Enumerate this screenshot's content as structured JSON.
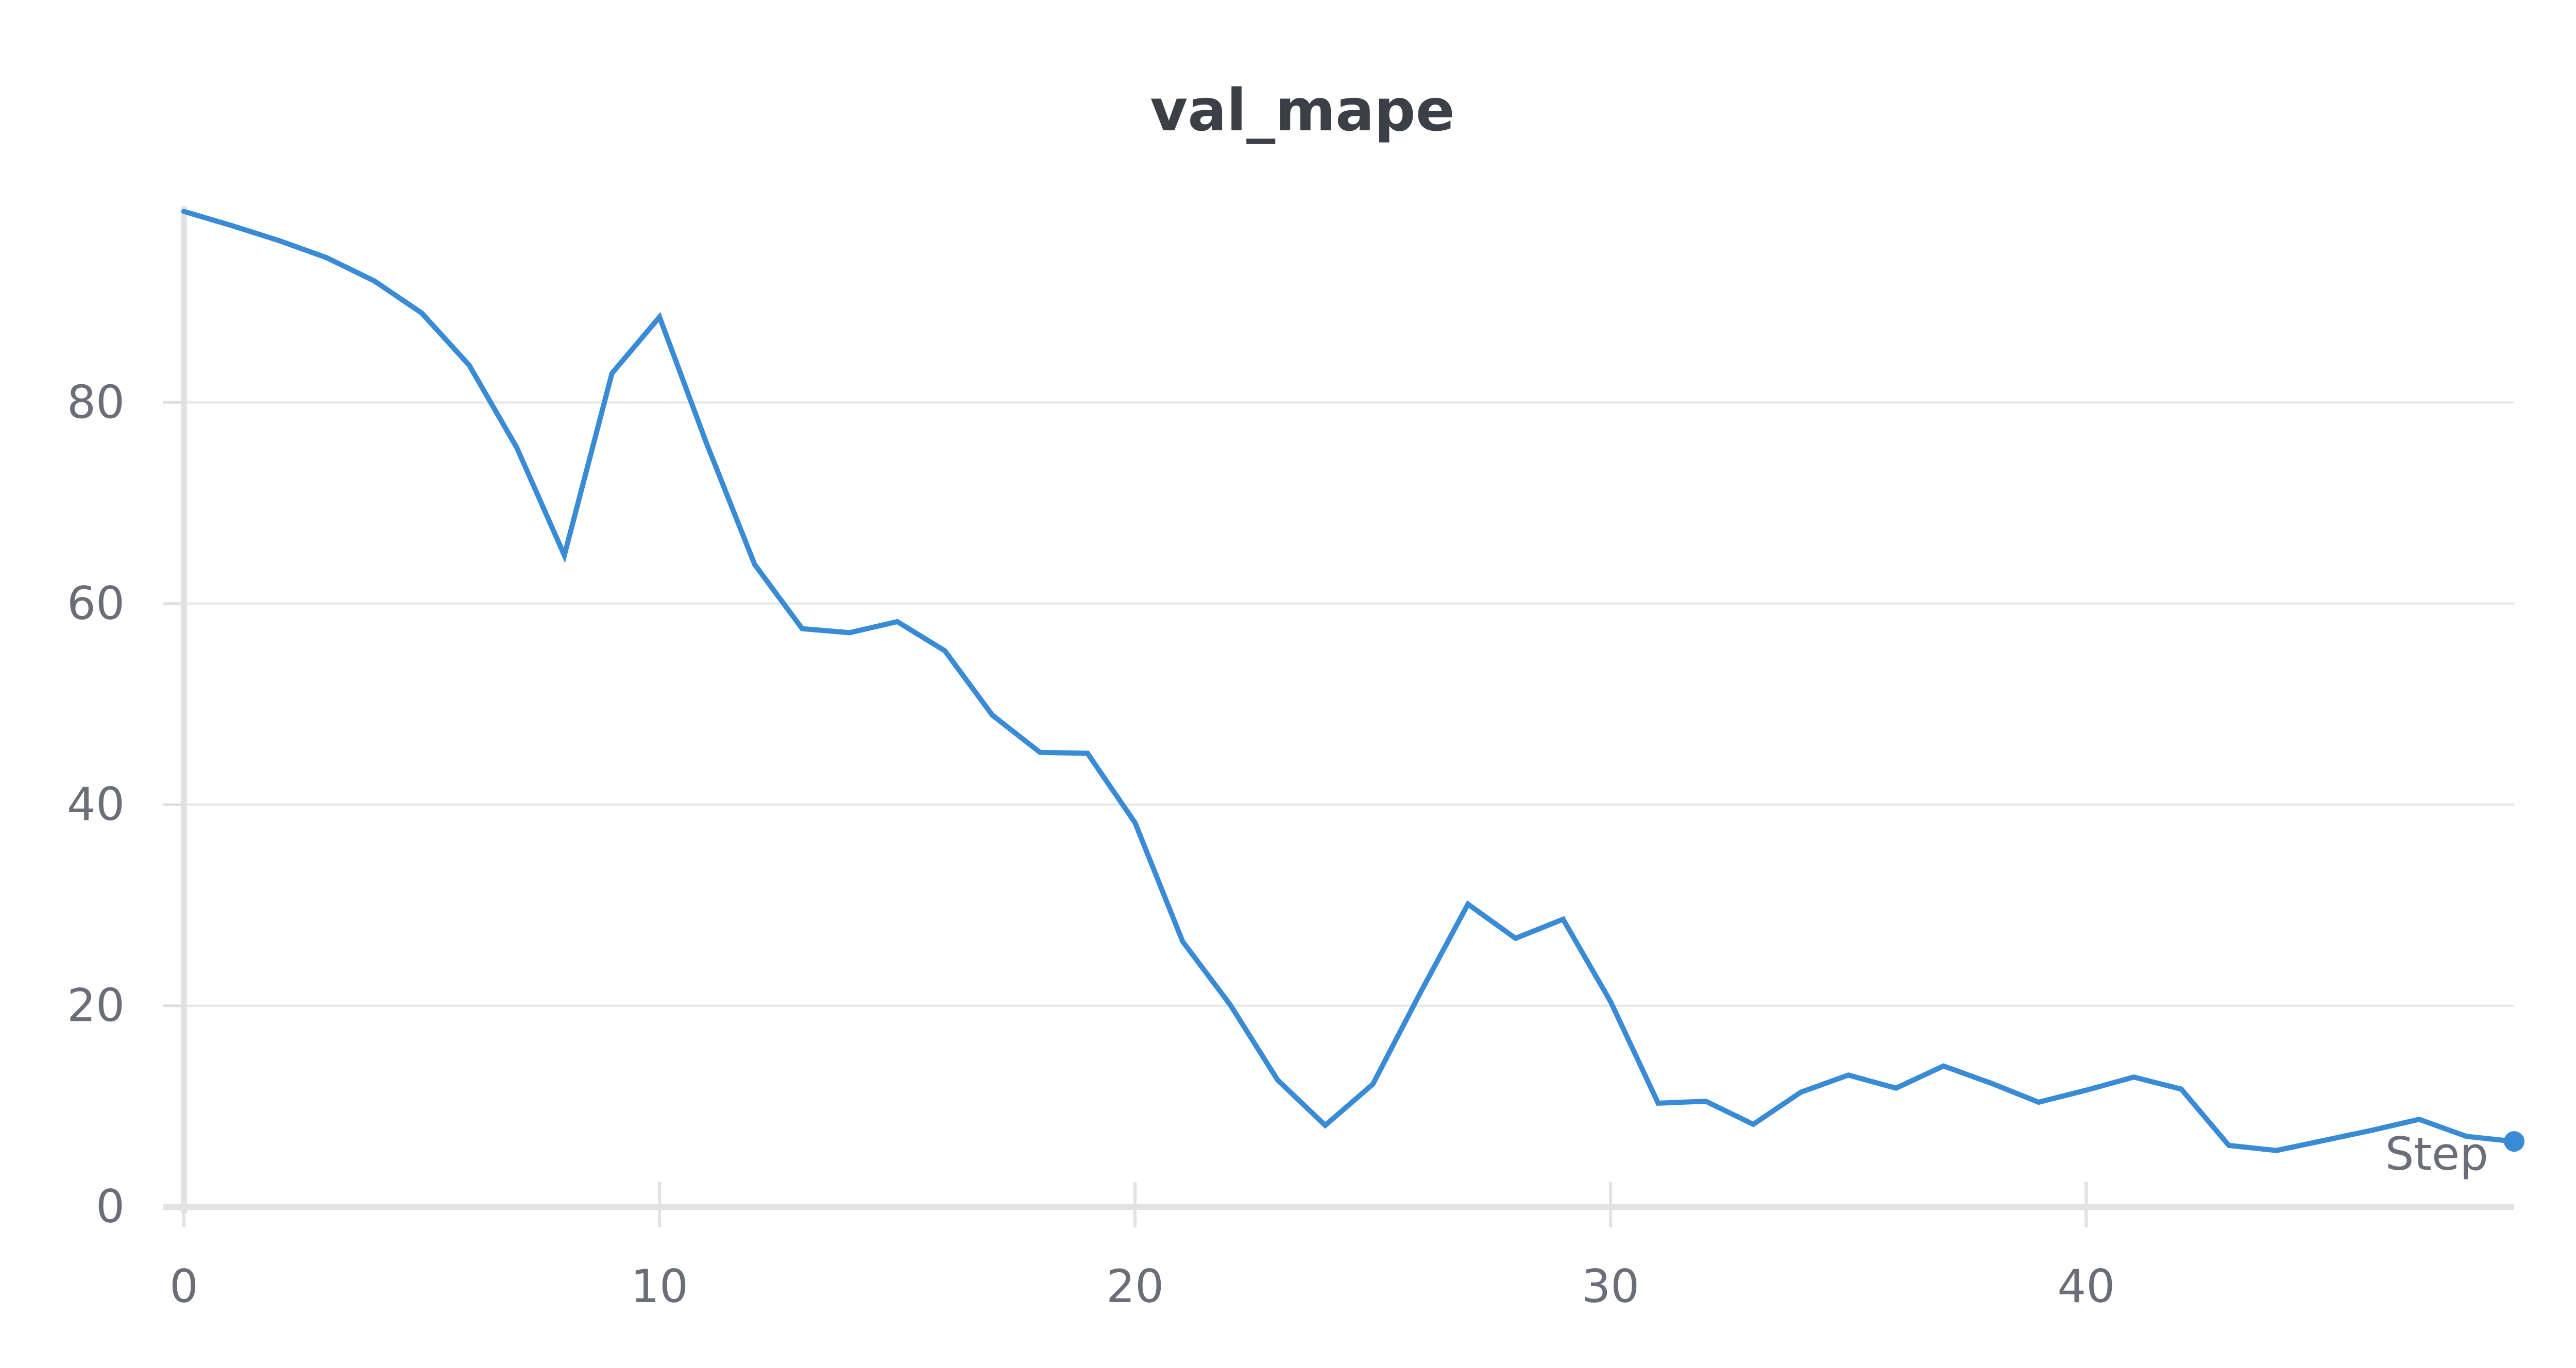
{
  "chart_data": {
    "type": "line",
    "title": "val_mape",
    "xlabel": "Step",
    "ylabel": "",
    "xlim": [
      0,
      49
    ],
    "ylim": [
      0,
      99
    ],
    "x_ticks": [
      0,
      10,
      20,
      30,
      40
    ],
    "y_ticks": [
      0,
      20,
      40,
      60,
      80
    ],
    "grid": true,
    "line_color": "#3a8bd6",
    "series": [
      {
        "x": [
          0,
          1,
          2,
          3,
          4,
          5,
          6,
          7,
          8,
          9,
          10,
          11,
          12,
          13,
          14,
          15,
          16,
          17,
          18,
          19,
          20,
          21,
          22,
          23,
          24,
          25,
          26,
          27,
          28,
          29,
          30,
          31,
          32,
          33,
          34,
          35,
          36,
          37,
          38,
          39,
          40,
          41,
          42,
          43,
          44,
          45,
          46,
          47,
          48,
          49
        ],
        "values": [
          99,
          97.6,
          96.1,
          94.4,
          92.1,
          88.9,
          83.7,
          75.5,
          64.8,
          82.9,
          88.5,
          75.8,
          63.9,
          57.5,
          57.1,
          58.2,
          55.3,
          48.9,
          45.2,
          45.1,
          38.2,
          26.4,
          20.1,
          12.6,
          8.1,
          12.2,
          21.3,
          30.1,
          26.7,
          28.6,
          20.4,
          10.3,
          10.5,
          8.2,
          11.4,
          13.1,
          11.8,
          14.0,
          12.3,
          10.4,
          11.6,
          12.9,
          11.7,
          6.1,
          5.6,
          6.6,
          7.6,
          8.7,
          7.0,
          6.5
        ]
      }
    ]
  }
}
